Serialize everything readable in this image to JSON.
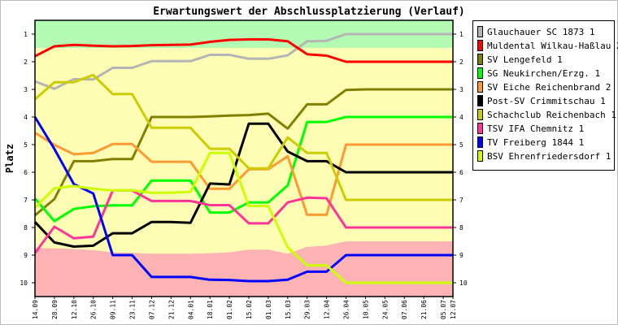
{
  "chart_data": {
    "type": "line",
    "title": "Erwartungswert der Abschlussplatzierung (Verlauf)",
    "xlabel": "",
    "ylabel": "Platz",
    "ylim": [
      0.5,
      10.5
    ],
    "y_inverted": true,
    "yticks": [
      "1",
      "2",
      "3",
      "4",
      "5",
      "6",
      "7",
      "8",
      "9",
      "10"
    ],
    "categories": [
      "14.09",
      "28.09",
      "12.10",
      "26.10",
      "09.11",
      "23.11",
      "07.12",
      "21.12",
      "04.01",
      "18.01",
      "01.02",
      "15.02",
      "01.03",
      "15.03",
      "29.03",
      "12.04",
      "26.04",
      "10.05",
      "24.05",
      "07.06",
      "21.06",
      "05.07",
      "12.07"
    ],
    "x_weeks": [
      0,
      2,
      4,
      6,
      8,
      10,
      12,
      14,
      16,
      18,
      20,
      22,
      24,
      26,
      28,
      30,
      32,
      34,
      36,
      38,
      40,
      42,
      43
    ],
    "zones": {
      "promotion_until": 1.5,
      "relegation_from": [
        8.75,
        8.75,
        8.78,
        8.82,
        8.9,
        8.92,
        8.95,
        8.95,
        8.95,
        8.93,
        8.9,
        8.8,
        8.8,
        8.95,
        8.7,
        8.65,
        8.5,
        8.5,
        8.5,
        8.5,
        8.5,
        8.5,
        8.5
      ],
      "colors": {
        "promotion": "#b3fbb3",
        "middle": "#fdfdb3",
        "relegation": "#fdb3b3"
      }
    },
    "legend_position": "right",
    "series": [
      {
        "name": "Glauchauer SC 1873 1",
        "color": "#b4b4b4",
        "values": [
          2.71,
          2.98,
          2.63,
          2.64,
          2.22,
          2.22,
          1.98,
          1.98,
          1.98,
          1.75,
          1.75,
          1.89,
          1.89,
          1.77,
          1.26,
          1.24,
          1.0,
          1.0,
          1.0,
          1.0,
          1.0,
          1.0,
          1.0
        ]
      },
      {
        "name": "Muldental Wilkau-Haßlau 2",
        "color": "#ff0000",
        "values": [
          1.8,
          1.44,
          1.39,
          1.42,
          1.44,
          1.43,
          1.4,
          1.39,
          1.38,
          1.28,
          1.21,
          1.19,
          1.19,
          1.26,
          1.73,
          1.78,
          2.0,
          2.0,
          2.0,
          2.0,
          2.0,
          2.0,
          2.0
        ]
      },
      {
        "name": "SV Lengefeld 1",
        "color": "#808000",
        "values": [
          7.56,
          6.97,
          5.6,
          5.6,
          5.52,
          5.52,
          4.0,
          4.0,
          4.0,
          3.98,
          3.95,
          3.93,
          3.88,
          4.42,
          3.54,
          3.54,
          3.02,
          3.0,
          3.0,
          3.0,
          3.0,
          3.0,
          3.0
        ]
      },
      {
        "name": "SG Neukirchen/Erzg. 1",
        "color": "#00ff00",
        "values": [
          6.95,
          7.77,
          7.33,
          7.23,
          7.2,
          7.2,
          6.3,
          6.3,
          6.3,
          7.46,
          7.46,
          7.09,
          7.09,
          6.48,
          4.18,
          4.18,
          4.0,
          4.0,
          4.0,
          4.0,
          4.0,
          4.0,
          4.0
        ]
      },
      {
        "name": "SV Eiche Reichenbrand 2",
        "color": "#ff9933",
        "values": [
          4.57,
          5.01,
          5.35,
          5.3,
          4.98,
          4.98,
          5.62,
          5.62,
          5.62,
          6.6,
          6.6,
          5.89,
          5.89,
          5.42,
          7.54,
          7.54,
          5.0,
          5.0,
          5.0,
          5.0,
          5.0,
          5.0,
          5.0
        ]
      },
      {
        "name": "Post-SV Crimmitschau 1",
        "color": "#000000",
        "values": [
          7.8,
          8.54,
          8.69,
          8.66,
          8.21,
          8.21,
          7.8,
          7.8,
          7.83,
          6.41,
          6.44,
          4.24,
          4.24,
          5.25,
          5.6,
          5.6,
          6.0,
          6.0,
          6.0,
          6.0,
          6.0,
          6.0,
          6.0
        ]
      },
      {
        "name": "Schachclub Reichenbach 1",
        "color": "#cccc00",
        "values": [
          3.36,
          2.74,
          2.74,
          2.48,
          3.17,
          3.17,
          4.39,
          4.39,
          4.39,
          5.15,
          5.15,
          5.86,
          5.86,
          4.74,
          5.3,
          5.3,
          7.0,
          7.0,
          7.0,
          7.0,
          7.0,
          7.0,
          7.0
        ]
      },
      {
        "name": "TSV IFA Chemnitz 1",
        "color": "#ff3399",
        "values": [
          8.93,
          7.97,
          8.39,
          8.33,
          6.66,
          6.66,
          7.04,
          7.04,
          7.04,
          7.19,
          7.19,
          7.85,
          7.85,
          7.09,
          6.92,
          6.94,
          8.0,
          8.0,
          8.0,
          8.0,
          8.0,
          8.0,
          8.0
        ]
      },
      {
        "name": "TV Freiberg 1844 1",
        "color": "#0000ff",
        "values": [
          4.0,
          5.16,
          6.43,
          6.77,
          9.0,
          9.0,
          9.79,
          9.79,
          9.79,
          9.89,
          9.9,
          9.94,
          9.94,
          9.89,
          9.6,
          9.6,
          9.0,
          9.0,
          9.0,
          9.0,
          9.0,
          9.0,
          9.0
        ]
      },
      {
        "name": "BSV Ehrenfriedersdorf 1",
        "color": "#ccff00",
        "values": [
          7.29,
          6.58,
          6.5,
          6.6,
          6.66,
          6.65,
          6.74,
          6.74,
          6.71,
          5.3,
          5.3,
          7.22,
          7.22,
          8.72,
          9.37,
          9.37,
          10.0,
          10.0,
          10.0,
          10.0,
          10.0,
          10.0,
          10.0
        ]
      }
    ]
  }
}
